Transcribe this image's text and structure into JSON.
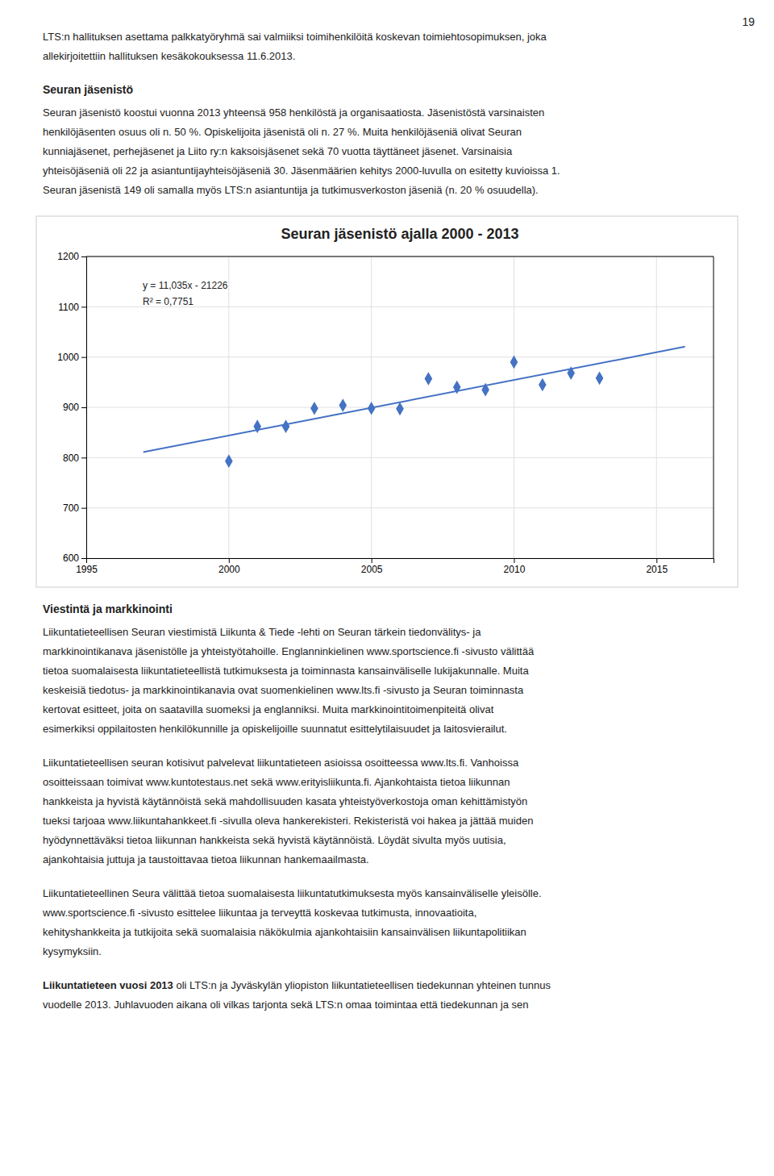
{
  "chart_data": {
    "type": "scatter",
    "title": "Seuran jäsenistö ajalla 2000 - 2013",
    "xlim": [
      1995,
      2017
    ],
    "ylim": [
      600,
      1200
    ],
    "xticks": [
      1995,
      2000,
      2005,
      2010,
      2015
    ],
    "yticks": [
      600,
      700,
      800,
      900,
      1000,
      1100,
      1200
    ],
    "grid": true,
    "series": [
      {
        "type": "scatter",
        "marker": "diamond",
        "color": "#4472C4",
        "x": [
          2000,
          2001,
          2002,
          2003,
          2004,
          2005,
          2006,
          2007,
          2008,
          2009,
          2010,
          2011,
          2012,
          2013
        ],
        "values": [
          793,
          862,
          862,
          898,
          904,
          898,
          897,
          957,
          940,
          935,
          990,
          945,
          968,
          958
        ]
      },
      {
        "type": "line",
        "line_style": "solid",
        "color": "#4472C4",
        "x": [
          1997,
          2016
        ],
        "values": [
          810.895,
          1020.56
        ]
      }
    ],
    "annotations": [
      "y = 11,035x - 21226",
      "R² = 0,7751"
    ]
  },
  "page_number": "19",
  "para1_lines": [
    "LTS:n hallituksen asettama palkkatyöryhmä sai valmiiksi toimihenkilöitä koskevan toimiehtosopimuksen, joka",
    "allekirjoitettiin hallituksen kesäkokouksessa 11.6.2013."
  ],
  "heading1": "Seuran jäsenistö",
  "para2_lines": [
    "Seuran jäsenistö koostui vuonna 2013 yhteensä 958 henkilöstä ja organisaatiosta. Jäsenistöstä varsinaisten",
    "henkilöjäsenten osuus oli n. 50 %. Opiskelijoita jäsenistä oli n. 27 %. Muita henkilöjäseniä olivat Seuran",
    "kunniajäsenet, perhejäsenet ja Liito ry:n kaksoisjäsenet sekä 70 vuotta täyttäneet jäsenet. Varsinaisia",
    "yhteisöjäseniä oli 22 ja asiantuntijayhteisöjäseniä 30. Jäsenmäärien kehitys 2000-luvulla on esitetty kuvioissa 1.",
    "Seuran jäsenistä 149 oli samalla myös LTS:n asiantuntija ja tutkimusverkoston jäseniä (n. 20 % osuudella)."
  ],
  "heading2": "Viestintä ja markkinointi",
  "para3_lines": [
    "Liikuntatieteellisen Seuran viestimistä Liikunta & Tiede -lehti on Seuran tärkein tiedonvälitys- ja",
    "markkinointikanava jäsenistölle ja yhteistyötahoille. Englanninkielinen www.sportscience.fi -sivusto välittää",
    "tietoa suomalaisesta liikuntatieteellistä tutkimuksesta ja toiminnasta kansainväliselle lukijakunnalle. Muita",
    "keskeisiä tiedotus- ja markkinointikanavia ovat suomenkielinen www.lts.fi -sivusto ja Seuran toiminnasta",
    "kertovat esitteet, joita on saatavilla suomeksi ja englanniksi. Muita markkinointitoimenpiteitä olivat",
    "esimerkiksi oppilaitosten henkilökunnille ja opiskelijoille suunnatut esittelytilaisuudet ja laitosvierailut."
  ],
  "para4_lines": [
    "Liikuntatieteellisen seuran kotisivut palvelevat liikuntatieteen asioissa osoitteessa www.lts.fi. Vanhoissa",
    "osoitteissaan toimivat www.kuntotestaus.net sekä www.erityisliikunta.fi. Ajankohtaista tietoa liikunnan",
    "hankkeista ja hyvistä käytännöistä sekä mahdollisuuden kasata yhteistyöverkostoja oman kehittämistyön",
    "tueksi tarjoaa www.liikuntahankkeet.fi -sivulla oleva hankerekisteri. Rekisteristä voi hakea ja jättää muiden",
    "hyödynnettäväksi tietoa liikunnan hankkeista sekä hyvistä käytännöistä. Löydät sivulta myös uutisia,",
    "ajankohtaisia juttuja ja taustoittavaa tietoa liikunnan hankemaailmasta."
  ],
  "para5_lines": [
    "Liikuntatieteellinen Seura välittää tietoa suomalaisesta liikuntatutkimuksesta myös kansainväliselle yleisölle.",
    "www.sportscience.fi -sivusto esittelee liikuntaa ja terveyttä koskevaa tutkimusta, innovaatioita,",
    "kehityshankkeita ja tutkijoita sekä suomalaisia näkökulmia ajankohtaisiin kansainvälisen liikuntapolitiikan",
    "kysymyksiin."
  ],
  "para6_bold": "Liikuntatieteen vuosi 2013",
  "para6_rest": " oli LTS:n ja Jyväskylän yliopiston liikuntatieteellisen tiedekunnan yhteinen tunnus",
  "para6_line2": "vuodelle 2013. Juhlavuoden aikana oli vilkas tarjonta sekä LTS:n omaa toimintaa että tiedekunnan ja sen"
}
